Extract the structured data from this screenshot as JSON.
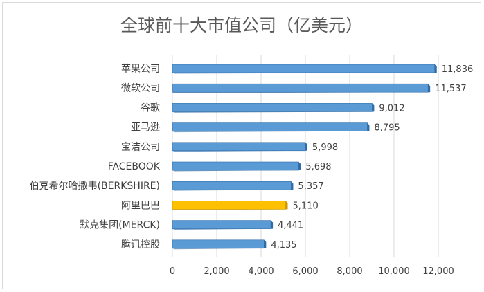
{
  "chart_data": {
    "type": "bar",
    "orientation": "horizontal",
    "title": "全球前十大市值公司（亿美元）",
    "categories": [
      "苹果公司",
      "微软公司",
      "谷歌",
      "亚马逊",
      "宝洁公司",
      "FACEBOOK",
      "伯克希尔哈撒韦(BERKSHIRE)",
      "阿里巴巴",
      "默克集团(MERCK)",
      "腾讯控股"
    ],
    "values": [
      11836,
      11537,
      9012,
      8795,
      5998,
      5698,
      5357,
      5110,
      4441,
      4135
    ],
    "value_labels": [
      "11,836",
      "11,537",
      "9,012",
      "8,795",
      "5,998",
      "5,698",
      "5,357",
      "5,110",
      "4,441",
      "4,135"
    ],
    "xlim": [
      0,
      12000
    ],
    "x_ticks": [
      "0",
      "2,000",
      "4,000",
      "6,000",
      "8,000",
      "10,000",
      "12,000"
    ],
    "x_tick_values": [
      0,
      2000,
      4000,
      6000,
      8000,
      10000,
      12000
    ],
    "grid": "vertical",
    "legend": "none",
    "colors": {
      "bar": "#5b9bd5",
      "bar_dark": "#2e6ba8",
      "highlight": "#ffc000",
      "highlight_dark": "#c99700"
    },
    "highlight_index": 7
  }
}
